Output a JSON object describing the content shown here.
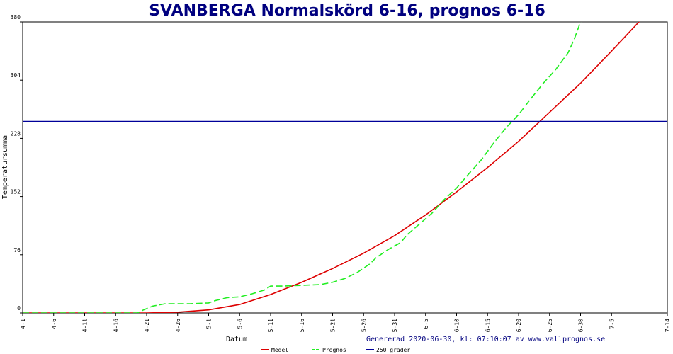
{
  "chart_data": {
    "type": "line",
    "title": "SVANBERGA Normalskörd 6-16, prognos 6-16",
    "xlabel": "Datum",
    "ylabel": "Temperatursumma",
    "ylim": [
      0,
      380
    ],
    "yticks": [
      "0",
      "76",
      "152",
      "228",
      "304",
      "380"
    ],
    "xticks": [
      "4-1",
      "4-6",
      "4-11",
      "4-16",
      "4-21",
      "4-26",
      "5-1",
      "5-6",
      "5-11",
      "5-16",
      "5-21",
      "5-26",
      "5-31",
      "6-5",
      "6-10",
      "6-15",
      "6-20",
      "6-25",
      "6-30",
      "7-5",
      "7-14"
    ],
    "footer": "Genererad 2020-06-30, kl: 07:10:07 av www.vallprognos.se",
    "grid": false,
    "legend_position": "bottom",
    "series": [
      {
        "name": "Medel",
        "color": "#dd0000",
        "dash": false,
        "points": [
          [
            0,
            0
          ],
          [
            5,
            0
          ],
          [
            10,
            0
          ],
          [
            15,
            0
          ],
          [
            20,
            0
          ],
          [
            25,
            1
          ],
          [
            30,
            4
          ],
          [
            35,
            11
          ],
          [
            40,
            24
          ],
          [
            45,
            40
          ],
          [
            50,
            58
          ],
          [
            55,
            78
          ],
          [
            60,
            101
          ],
          [
            65,
            128
          ],
          [
            70,
            158
          ],
          [
            75,
            190
          ],
          [
            80,
            224
          ],
          [
            85,
            262
          ],
          [
            90,
            300
          ],
          [
            95,
            342
          ],
          [
            100,
            385
          ],
          [
            101,
            393
          ]
        ]
      },
      {
        "name": "Prognos",
        "color": "#22ee22",
        "dash": true,
        "points": [
          [
            0,
            0
          ],
          [
            10,
            0
          ],
          [
            15,
            0
          ],
          [
            18.5,
            0
          ],
          [
            19.5,
            4
          ],
          [
            21,
            9
          ],
          [
            23,
            12
          ],
          [
            25,
            12
          ],
          [
            27,
            12
          ],
          [
            30,
            13
          ],
          [
            31,
            16
          ],
          [
            33,
            20
          ],
          [
            35,
            21
          ],
          [
            37,
            25
          ],
          [
            39,
            30
          ],
          [
            40,
            35
          ],
          [
            42,
            35
          ],
          [
            45,
            36
          ],
          [
            48,
            37
          ],
          [
            50,
            40
          ],
          [
            52,
            45
          ],
          [
            54,
            53
          ],
          [
            56,
            64
          ],
          [
            57,
            72
          ],
          [
            59,
            83
          ],
          [
            61,
            92
          ],
          [
            62,
            102
          ],
          [
            64,
            116
          ],
          [
            66,
            130
          ],
          [
            68,
            148
          ],
          [
            70,
            163
          ],
          [
            72,
            182
          ],
          [
            74,
            200
          ],
          [
            76,
            222
          ],
          [
            78,
            242
          ],
          [
            80,
            259
          ],
          [
            82,
            280
          ],
          [
            84,
            300
          ],
          [
            86,
            318
          ],
          [
            88,
            340
          ],
          [
            89,
            358
          ],
          [
            90,
            380
          ],
          [
            91,
            395
          ]
        ]
      },
      {
        "name": "250 grader",
        "color": "#000099",
        "dash": false,
        "points": [
          [
            0,
            250
          ],
          [
            104,
            250
          ]
        ]
      }
    ]
  }
}
